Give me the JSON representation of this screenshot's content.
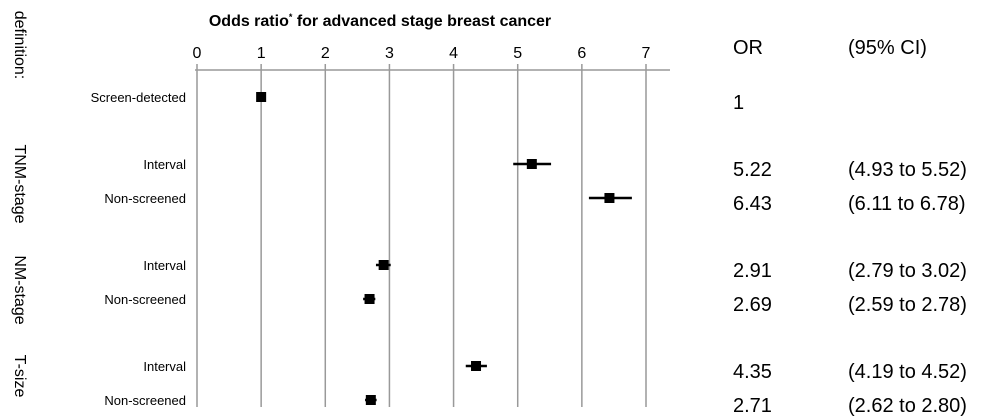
{
  "chart_data": {
    "type": "forest",
    "title": "Odds ratio",
    "title_superscript": "*",
    "title_suffix": " for advanced stage breast cancer",
    "x_ticks": [
      0,
      1,
      2,
      3,
      4,
      5,
      6,
      7
    ],
    "xlim": [
      0,
      7
    ],
    "grid": "vertical",
    "side_label_prefix": "definition:",
    "groups": [
      {
        "label": "",
        "rows": [
          {
            "label": "Screen-detected",
            "or": 1,
            "ci_low": null,
            "ci_high": null,
            "or_text": "1",
            "ci_text": ""
          }
        ]
      },
      {
        "label": "TNM-stage",
        "rows": [
          {
            "label": "Interval",
            "or": 5.22,
            "ci_low": 4.93,
            "ci_high": 5.52,
            "or_text": "5.22",
            "ci_text": "(4.93 to 5.52)"
          },
          {
            "label": "Non-screened",
            "or": 6.43,
            "ci_low": 6.11,
            "ci_high": 6.78,
            "or_text": "6.43",
            "ci_text": "(6.11 to 6.78)"
          }
        ]
      },
      {
        "label": "NM-stage",
        "rows": [
          {
            "label": "Interval",
            "or": 2.91,
            "ci_low": 2.79,
            "ci_high": 3.02,
            "or_text": "2.91",
            "ci_text": "(2.79 to 3.02)"
          },
          {
            "label": "Non-screened",
            "or": 2.69,
            "ci_low": 2.59,
            "ci_high": 2.78,
            "or_text": "2.69",
            "ci_text": "(2.59 to 2.78)"
          }
        ]
      },
      {
        "label": "T-size",
        "rows": [
          {
            "label": "Interval",
            "or": 4.35,
            "ci_low": 4.19,
            "ci_high": 4.52,
            "or_text": "4.35",
            "ci_text": "(4.19 to 4.52)"
          },
          {
            "label": "Non-screened",
            "or": 2.71,
            "ci_low": 2.62,
            "ci_high": 2.8,
            "or_text": "2.71",
            "ci_text": "(2.62 to 2.80)"
          }
        ]
      }
    ]
  },
  "table_headers": {
    "or": "OR",
    "ci": "(95% CI)"
  },
  "colors": {
    "marker": "#000000",
    "grid": "#999999",
    "text": "#000000"
  }
}
